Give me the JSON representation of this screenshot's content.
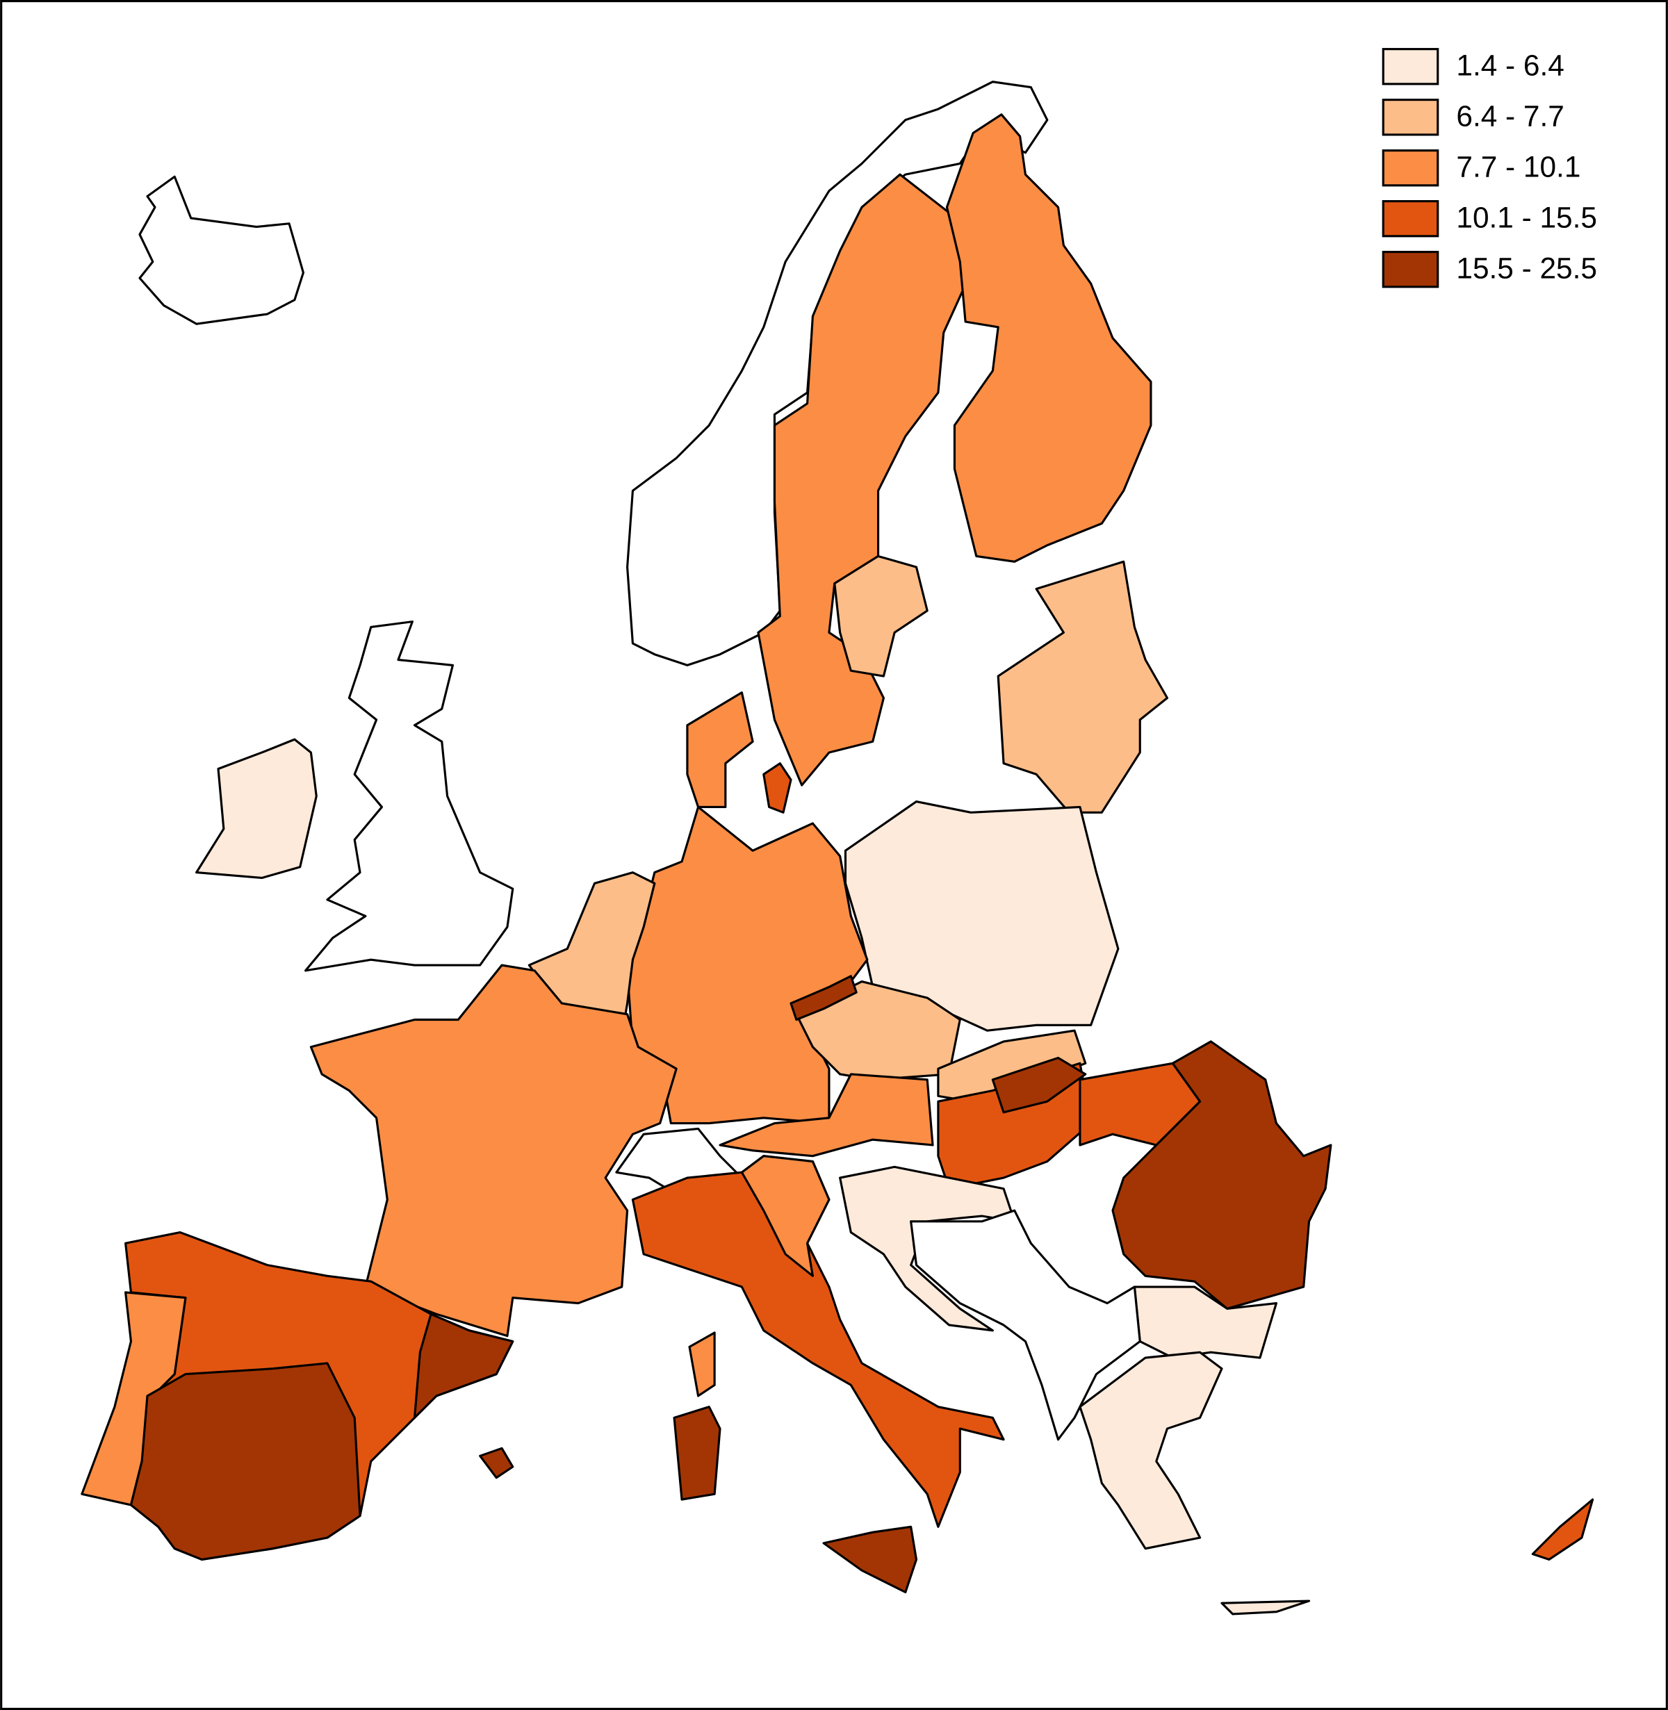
{
  "legend": [
    {
      "label": "1.4 - 6.4",
      "color": "#fdeadb"
    },
    {
      "label": "6.4 - 7.7",
      "color": "#fdbd88"
    },
    {
      "label": "7.7 - 10.1",
      "color": "#fb8d45"
    },
    {
      "label": "10.1 - 15.5",
      "color": "#e25511"
    },
    {
      "label": "15.5 - 25.5",
      "color": "#a33504"
    }
  ]
}
